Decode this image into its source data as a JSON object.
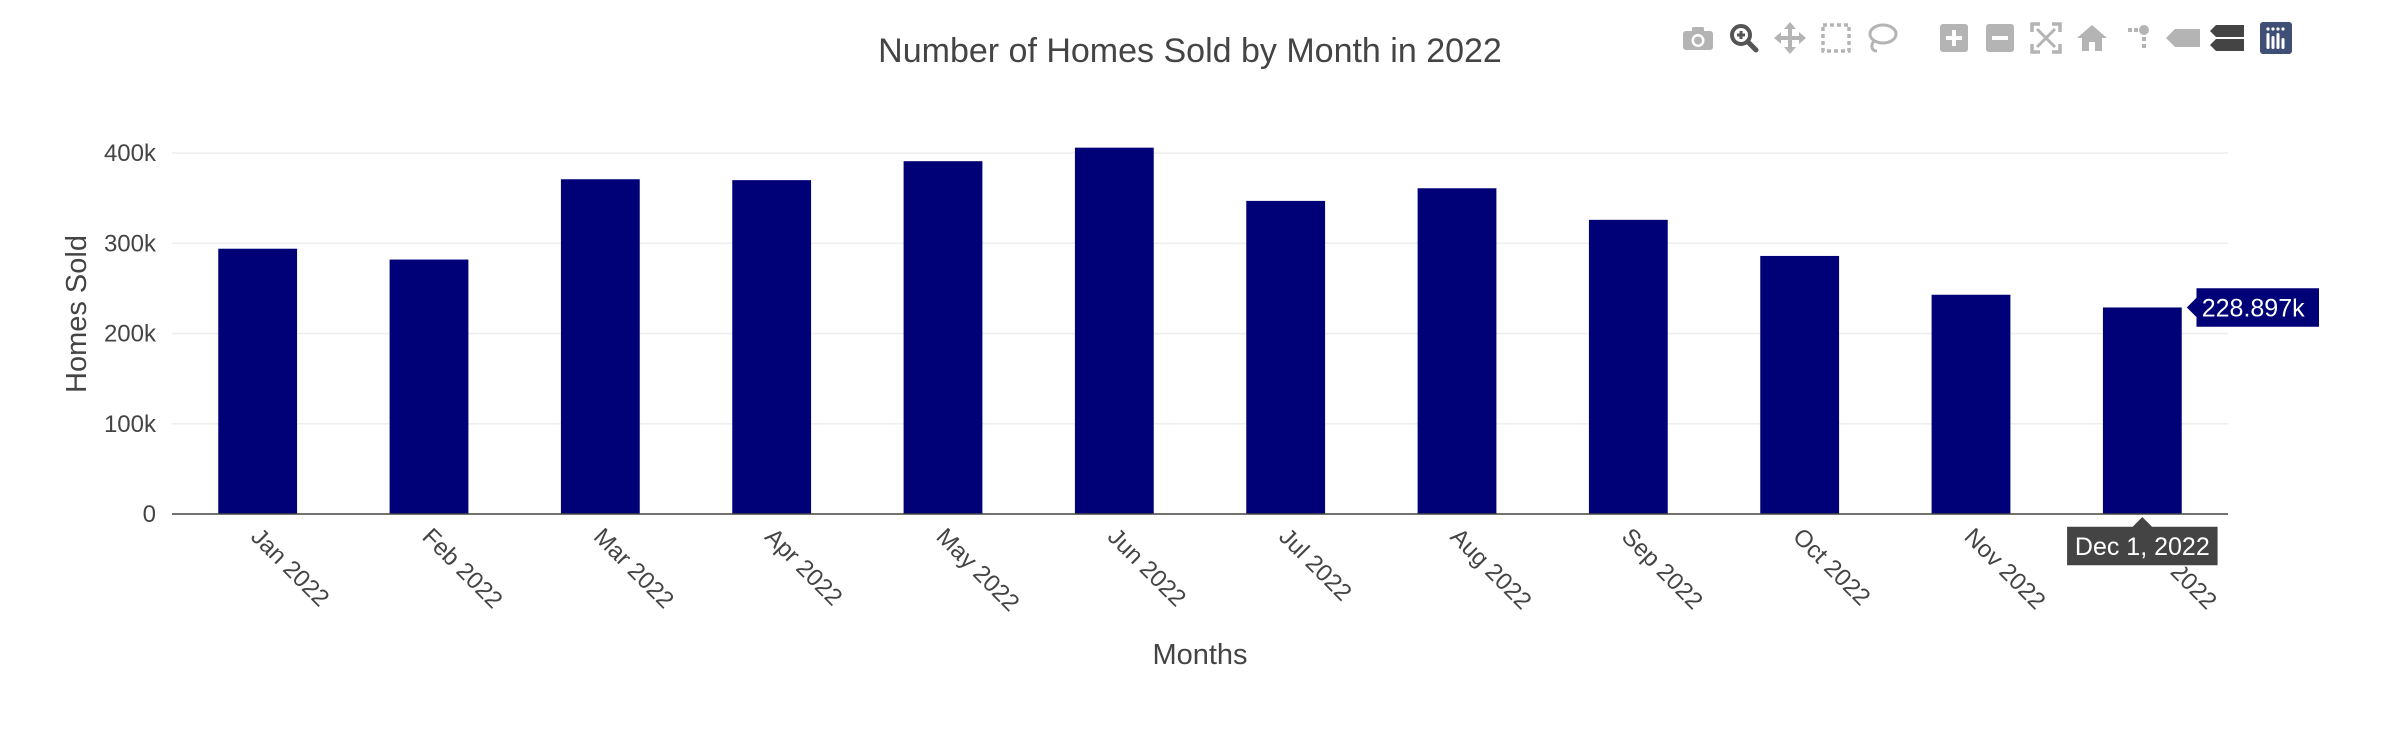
{
  "chart_data": {
    "type": "bar",
    "title": "Number of Homes Sold by Month in 2022",
    "xlabel": "Months",
    "ylabel": "Homes Sold",
    "categories": [
      "Jan 2022",
      "Feb 2022",
      "Mar 2022",
      "Apr 2022",
      "May 2022",
      "Jun 2022",
      "Jul 2022",
      "Aug 2022",
      "Sep 2022",
      "Oct 2022",
      "Nov 2022",
      "Dec 2022"
    ],
    "values": [
      294000,
      282000,
      371000,
      370000,
      391000,
      406000,
      347000,
      361000,
      326000,
      286000,
      243000,
      228897
    ],
    "ylim": [
      0,
      430000
    ],
    "yticks": [
      0,
      100000,
      200000,
      300000,
      400000
    ],
    "ytick_labels": [
      "0",
      "100k",
      "200k",
      "300k",
      "400k"
    ],
    "grid": true,
    "bar_color": "#000077",
    "hover": {
      "index": 11,
      "value_label": "228.897k",
      "x_label": "Dec 1, 2022"
    }
  },
  "modebar": {
    "icons": [
      "camera-icon",
      "zoom-icon",
      "pan-icon",
      "box-select-icon",
      "lasso-select-icon",
      "zoom-in-icon",
      "zoom-out-icon",
      "autoscale-icon",
      "reset-axes-icon",
      "spike-lines-icon",
      "hover-closest-icon",
      "hover-compare-icon",
      "plotly-logo-icon"
    ]
  }
}
